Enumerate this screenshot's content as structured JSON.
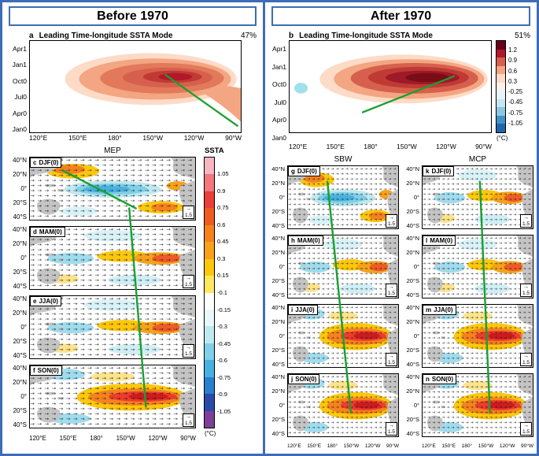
{
  "meta": {
    "figure_type": "multi-panel climate figure",
    "periods": [
      "Before 1970",
      "After 1970"
    ]
  },
  "colors": {
    "frame_blue": "#3e6db8",
    "green_line": "#18a030",
    "land_gray": "#c4c4c4"
  },
  "headers": {
    "left": "Before 1970",
    "right": "After 1970"
  },
  "hovmoller": {
    "panels": [
      {
        "id": "a",
        "title": "Leading Time-longitude SSTA Mode",
        "variance": "47%"
      },
      {
        "id": "b",
        "title": "Leading Time-longitude SSTA Mode",
        "variance": "51%"
      }
    ],
    "yticks": [
      "Apr1",
      "Jan1",
      "Oct0",
      "Jul0",
      "Apr0",
      "Jan0"
    ],
    "xticks": [
      "120°E",
      "150°E",
      "180°",
      "150°W",
      "120°W",
      "90°W"
    ],
    "colorbar": {
      "ticks": [
        "1.2",
        "0.9",
        "0.6",
        "0.3",
        "-0.25",
        "-0.45",
        "-0.75",
        "-1.05"
      ],
      "unit": "(°C)",
      "segments": [
        "#67001f",
        "#b2182b",
        "#d6604d",
        "#f4a582",
        "#fddbc7",
        "#f9f0eb",
        "#e8f4f8",
        "#c6e6f2",
        "#8cc6e0",
        "#4292c6",
        "#2166ac"
      ]
    }
  },
  "maps": {
    "yticks": [
      "40°N",
      "20°N",
      "0°",
      "20°S",
      "40°S"
    ],
    "xticks": [
      "120°E",
      "150°E",
      "180°",
      "150°W",
      "120°W",
      "90°W"
    ],
    "vector_scale": "1.5",
    "vector_arrow": "→",
    "columns": [
      {
        "title": "MEP",
        "panels": [
          {
            "id": "c",
            "season": "DJF(0)"
          },
          {
            "id": "d",
            "season": "MAM(0)"
          },
          {
            "id": "e",
            "season": "JJA(0)"
          },
          {
            "id": "f",
            "season": "SON(0)"
          }
        ]
      },
      {
        "title": "SBW",
        "panels": [
          {
            "id": "g",
            "season": "DJF(0)"
          },
          {
            "id": "h",
            "season": "MAM(0)"
          },
          {
            "id": "i",
            "season": "JJA(0)"
          },
          {
            "id": "j",
            "season": "SON(0)"
          }
        ]
      },
      {
        "title": "MCP",
        "panels": [
          {
            "id": "k",
            "season": "DJF(0)"
          },
          {
            "id": "l",
            "season": "MAM(0)"
          },
          {
            "id": "m",
            "season": "JJA(0)"
          },
          {
            "id": "n",
            "season": "SON(0)"
          }
        ]
      }
    ],
    "ssta_colorbar": {
      "label": "SSTA",
      "ticks": [
        "1.05",
        "0.9",
        "0.75",
        "0.6",
        "0.45",
        "0.3",
        "0.15",
        "-0.1",
        "-0.15",
        "-0.3",
        "-0.45",
        "-0.6",
        "-0.75",
        "-0.9",
        "-1.05"
      ],
      "unit": "(°C)",
      "segments": [
        "#f7b6c2",
        "#f4777f",
        "#e93e3a",
        "#f05b22",
        "#f5821f",
        "#f9a11b",
        "#fdc70c",
        "#fde860",
        "#ffffff",
        "#e8f7fa",
        "#bfe9f0",
        "#7fd0e8",
        "#47b2e0",
        "#2a7fce",
        "#2b4aa8",
        "#7d3f98"
      ]
    }
  },
  "chart_data": [
    {
      "type": "heatmap",
      "panel": "a",
      "chart": "time-longitude (Hovmöller) filled contours of leading SSTA mode, Before 1970",
      "title": "Leading Time-longitude SSTA Mode",
      "variance_explained_pct": 47,
      "x_ticks": [
        "120°E",
        "150°E",
        "180°",
        "150°W",
        "120°W",
        "90°W"
      ],
      "y_ticks_top_to_bottom": [
        "Apr1",
        "Jan1",
        "Oct0",
        "Jul0",
        "Apr0",
        "Jan0"
      ],
      "value_range_degC": [
        -1.05,
        1.2
      ],
      "features": [
        "warm anomaly (>0.3°C) spanning ~170°E to 90°W between Jul0 and Apr1",
        "maximum ~0.9–1.2°C near 150°W–120°W around Oct0–Jan1",
        "green reference line slopes down-eastward toward ~90°W near Jan0–Apr0"
      ]
    },
    {
      "type": "heatmap",
      "panel": "b",
      "chart": "time-longitude (Hovmöller) filled contours of leading SSTA mode, After 1970",
      "title": "Leading Time-longitude SSTA Mode",
      "variance_explained_pct": 51,
      "x_ticks": [
        "120°E",
        "150°E",
        "180°",
        "150°W",
        "120°W",
        "90°W"
      ],
      "y_ticks_top_to_bottom": [
        "Apr1",
        "Jan1",
        "Oct0",
        "Jul0",
        "Apr0",
        "Jan0"
      ],
      "value_range_degC": [
        -1.05,
        1.2
      ],
      "features": [
        "stronger warm core (>1.2°C) near 170°W–120°W around Oct0–Jan1",
        "small cool patch near ~135°E around Oct0",
        "green reference line slopes up-eastward from ~180°/Apr0 to ~120°W/Oct0"
      ]
    },
    {
      "type": "heatmap",
      "chart": "seasonal SSTA maps with surface wind vectors, domain 120°E–90°W and 40°S–40°N",
      "columns": [
        {
          "regime": "MEP",
          "period": "Before 1970",
          "panels": [
            "c DJF(0)",
            "d MAM(0)",
            "e JJA(0)",
            "f SON(0)"
          ]
        },
        {
          "regime": "SBW",
          "period": "After 1970",
          "panels": [
            "g DJF(0)",
            "h MAM(0)",
            "i JJA(0)",
            "j SON(0)"
          ]
        },
        {
          "regime": "MCP",
          "period": "After 1970",
          "panels": [
            "k DJF(0)",
            "l MAM(0)",
            "m JJA(0)",
            "n SON(0)"
          ]
        }
      ],
      "x_ticks": [
        "120°E",
        "150°E",
        "180°",
        "150°W",
        "120°W",
        "90°W"
      ],
      "y_ticks": [
        "40°N",
        "20°N",
        "0°",
        "20°S",
        "40°S"
      ],
      "colorbar": {
        "label": "SSTA",
        "unit": "(°C)",
        "ticks": [
          1.05,
          0.9,
          0.75,
          0.6,
          0.45,
          0.3,
          0.15,
          -0.1,
          -0.15,
          -0.3,
          -0.45,
          -0.6,
          -0.75,
          -0.9,
          -1.05
        ]
      },
      "vector_reference": 1.5,
      "features": [
        "equatorial Pacific warming develops from DJF(0) to SON(0) in each regime",
        "green lines trace the seasonal migration of the warming center across panels",
        "gray shading indicates land / non-significant regions; arrows show wind anomalies"
      ]
    }
  ]
}
